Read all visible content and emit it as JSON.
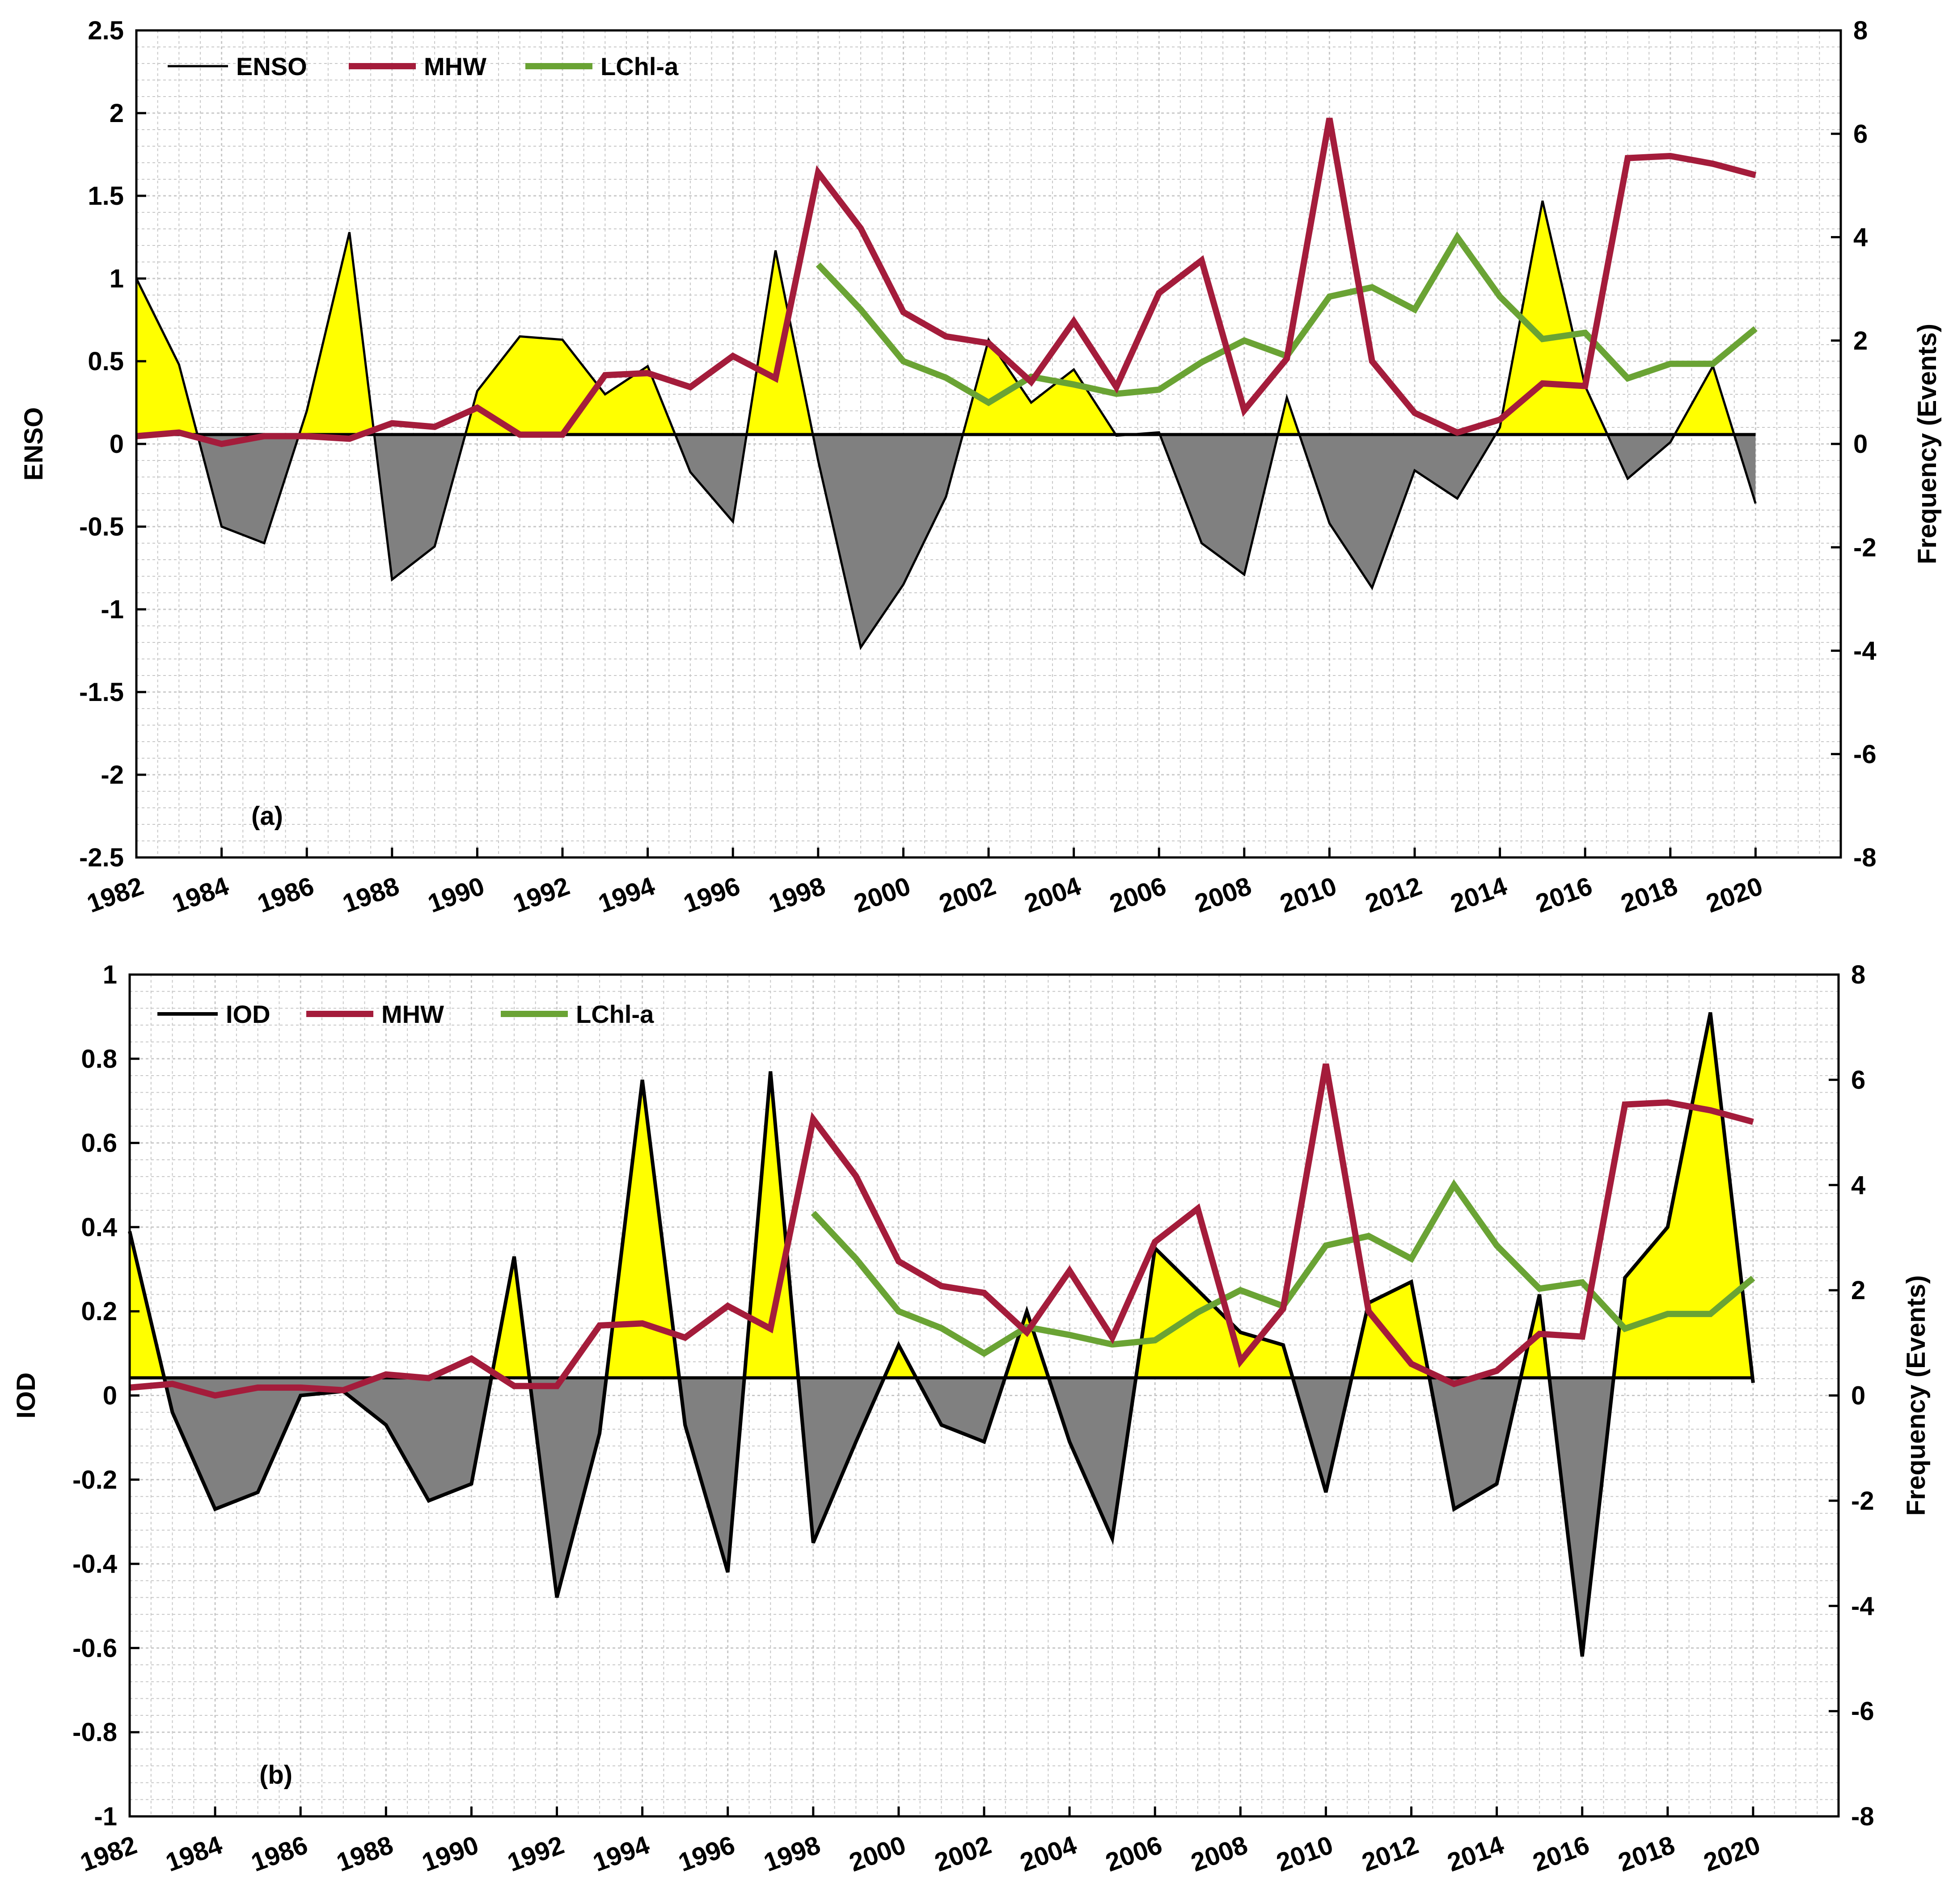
{
  "colors": {
    "positive_fill": "#ffff00",
    "negative_fill": "#808080",
    "index_line": "#000000",
    "mhw_line": "#a41c3b",
    "lchl_line": "#6aa334",
    "grid": "#c8c8c8",
    "zero_line": "#000000"
  },
  "chart_data": [
    {
      "type": "line",
      "panel_label": "(a)",
      "ylabel_left": "ENSO",
      "ylabel_right": "Frequency (Events)",
      "ylim_left": [
        -2.5,
        2.5
      ],
      "yticks_left": [
        2.5,
        2,
        1.5,
        1,
        0.5,
        0,
        -0.5,
        -1,
        -1.5,
        -2,
        -2.5
      ],
      "ytick_labels_left": [
        "2.5",
        "2",
        "1.5",
        "1",
        "0.5",
        "0",
        "-0.5",
        "-1",
        "-1.5",
        "-2",
        "-2.5"
      ],
      "ylim_right": [
        -8,
        8
      ],
      "yticks_right": [
        8,
        6,
        4,
        2,
        0,
        -2,
        -4,
        -6,
        -8
      ],
      "ytick_labels_right": [
        "8",
        "6",
        "4",
        "2",
        "0",
        "-2",
        "-4",
        "-6",
        "-8"
      ],
      "xlim": [
        1982,
        2022
      ],
      "xticks": [
        1982,
        1984,
        1986,
        1988,
        1990,
        1992,
        1994,
        1996,
        1998,
        2000,
        2002,
        2004,
        2006,
        2008,
        2010,
        2012,
        2014,
        2016,
        2018,
        2020
      ],
      "xtick_labels": [
        "1982",
        "1984",
        "1986",
        "1988",
        "1990",
        "1992",
        "1994",
        "1996",
        "1998",
        "2000",
        "2002",
        "2004",
        "2006",
        "2008",
        "2010",
        "2012",
        "2014",
        "2016",
        "2018",
        "2020"
      ],
      "legend": [
        "ENSO",
        "MHW",
        "LChl-a"
      ],
      "index_series": {
        "name": "ENSO",
        "x": [
          1982,
          1983,
          1984,
          1985,
          1986,
          1987,
          1988,
          1989,
          1990,
          1991,
          1992,
          1993,
          1994,
          1995,
          1996,
          1997,
          1998,
          1999,
          2000,
          2001,
          2002,
          2003,
          2004,
          2005,
          2006,
          2007,
          2008,
          2009,
          2010,
          2011,
          2012,
          2013,
          2014,
          2015,
          2016,
          2017,
          2018,
          2019,
          2020
        ],
        "values": [
          1.0,
          0.48,
          -0.5,
          -0.6,
          0.2,
          1.28,
          -0.82,
          -0.62,
          0.32,
          0.65,
          0.63,
          0.3,
          0.47,
          -0.17,
          -0.47,
          1.17,
          -0.1,
          -1.23,
          -0.85,
          -0.32,
          0.63,
          0.25,
          0.45,
          0.05,
          0.07,
          -0.6,
          -0.79,
          0.28,
          -0.48,
          -0.87,
          -0.16,
          -0.33,
          0.1,
          1.47,
          0.35,
          -0.21,
          0.01,
          0.47,
          -0.36
        ]
      },
      "mhw_series": {
        "name": "MHW",
        "x": [
          1982,
          1983,
          1984,
          1985,
          1986,
          1987,
          1988,
          1989,
          1990,
          1991,
          1992,
          1993,
          1994,
          1995,
          1996,
          1997,
          1998,
          1999,
          2000,
          2001,
          2002,
          2003,
          2004,
          2005,
          2006,
          2007,
          2008,
          2009,
          2010,
          2011,
          2012,
          2013,
          2014,
          2015,
          2016,
          2017,
          2018,
          2019,
          2020
        ],
        "values": [
          0.15,
          0.22,
          0.0,
          0.15,
          0.15,
          0.1,
          0.4,
          0.33,
          0.7,
          0.18,
          0.18,
          1.33,
          1.37,
          1.1,
          1.7,
          1.27,
          5.25,
          4.17,
          2.55,
          2.08,
          1.95,
          1.2,
          2.37,
          1.1,
          2.92,
          3.55,
          0.65,
          1.65,
          6.3,
          1.6,
          0.6,
          0.22,
          0.47,
          1.17,
          1.12,
          5.53,
          5.57,
          5.42,
          5.2
        ]
      },
      "lchl_series": {
        "name": "LChl-a",
        "x": [
          1998,
          1999,
          2000,
          2001,
          2002,
          2003,
          2004,
          2005,
          2006,
          2007,
          2008,
          2009,
          2010,
          2011,
          2012,
          2013,
          2014,
          2015,
          2016,
          2017,
          2018,
          2019,
          2020
        ],
        "values": [
          3.47,
          2.6,
          1.6,
          1.28,
          0.8,
          1.3,
          1.15,
          0.97,
          1.05,
          1.58,
          2.0,
          1.7,
          2.85,
          3.03,
          2.6,
          4.0,
          2.85,
          2.03,
          2.15,
          1.27,
          1.55,
          1.55,
          2.23
        ]
      }
    },
    {
      "type": "line",
      "panel_label": "(b)",
      "ylabel_left": "IOD",
      "ylabel_right": "Frequency (Events)",
      "ylim_left": [
        -1,
        1
      ],
      "yticks_left": [
        1,
        0.8,
        0.6,
        0.4,
        0.2,
        0,
        -0.2,
        -0.4,
        -0.6,
        -0.8,
        -1
      ],
      "ytick_labels_left": [
        "1",
        "0.8",
        "0.6",
        "0.4",
        "0.2",
        "0",
        "-0.2",
        "-0.4",
        "-0.6",
        "-0.8",
        "-1"
      ],
      "ylim_right": [
        -8,
        8
      ],
      "yticks_right": [
        8,
        6,
        4,
        2,
        0,
        -2,
        -4,
        -6,
        -8
      ],
      "ytick_labels_right": [
        "8",
        "6",
        "4",
        "2",
        "0",
        "-2",
        "-4",
        "-6",
        "-8"
      ],
      "xlim": [
        1982,
        2022
      ],
      "xticks": [
        1982,
        1984,
        1986,
        1988,
        1990,
        1992,
        1994,
        1996,
        1998,
        2000,
        2002,
        2004,
        2006,
        2008,
        2010,
        2012,
        2014,
        2016,
        2018,
        2020
      ],
      "xtick_labels": [
        "1982",
        "1984",
        "1986",
        "1988",
        "1990",
        "1992",
        "1994",
        "1996",
        "1998",
        "2000",
        "2002",
        "2004",
        "2006",
        "2008",
        "2010",
        "2012",
        "2014",
        "2016",
        "2018",
        "2020"
      ],
      "legend": [
        "IOD",
        "MHW",
        "LChl-a"
      ],
      "index_series": {
        "name": "IOD",
        "x": [
          1982,
          1983,
          1984,
          1985,
          1986,
          1987,
          1988,
          1989,
          1990,
          1991,
          1992,
          1993,
          1994,
          1995,
          1996,
          1997,
          1998,
          1999,
          2000,
          2001,
          2002,
          2003,
          2004,
          2005,
          2006,
          2007,
          2008,
          2009,
          2010,
          2011,
          2012,
          2013,
          2014,
          2015,
          2016,
          2017,
          2018,
          2019,
          2020
        ],
        "values": [
          0.39,
          -0.04,
          -0.27,
          -0.23,
          0.0,
          0.01,
          -0.07,
          -0.25,
          -0.21,
          0.33,
          -0.48,
          -0.09,
          0.75,
          -0.07,
          -0.42,
          0.77,
          -0.35,
          -0.11,
          0.12,
          -0.07,
          -0.11,
          0.2,
          -0.11,
          -0.34,
          0.35,
          0.25,
          0.15,
          0.12,
          -0.23,
          0.22,
          0.27,
          -0.27,
          -0.21,
          0.24,
          -0.62,
          0.28,
          0.4,
          0.91,
          0.03
        ]
      },
      "mhw_series": {
        "name": "MHW",
        "x": [
          1982,
          1983,
          1984,
          1985,
          1986,
          1987,
          1988,
          1989,
          1990,
          1991,
          1992,
          1993,
          1994,
          1995,
          1996,
          1997,
          1998,
          1999,
          2000,
          2001,
          2002,
          2003,
          2004,
          2005,
          2006,
          2007,
          2008,
          2009,
          2010,
          2011,
          2012,
          2013,
          2014,
          2015,
          2016,
          2017,
          2018,
          2019,
          2020
        ],
        "values": [
          0.15,
          0.22,
          0.0,
          0.15,
          0.15,
          0.1,
          0.4,
          0.33,
          0.7,
          0.18,
          0.18,
          1.33,
          1.37,
          1.1,
          1.7,
          1.27,
          5.25,
          4.17,
          2.55,
          2.08,
          1.95,
          1.2,
          2.37,
          1.1,
          2.92,
          3.55,
          0.65,
          1.65,
          6.3,
          1.6,
          0.6,
          0.22,
          0.47,
          1.17,
          1.12,
          5.53,
          5.57,
          5.42,
          5.2
        ]
      },
      "lchl_series": {
        "name": "LChl-a",
        "x": [
          1998,
          1999,
          2000,
          2001,
          2002,
          2003,
          2004,
          2005,
          2006,
          2007,
          2008,
          2009,
          2010,
          2011,
          2012,
          2013,
          2014,
          2015,
          2016,
          2017,
          2018,
          2019,
          2020
        ],
        "values": [
          3.47,
          2.6,
          1.6,
          1.28,
          0.8,
          1.3,
          1.15,
          0.97,
          1.05,
          1.58,
          2.0,
          1.7,
          2.85,
          3.03,
          2.6,
          4.0,
          2.85,
          2.03,
          2.15,
          1.27,
          1.55,
          1.55,
          2.23
        ]
      }
    }
  ]
}
